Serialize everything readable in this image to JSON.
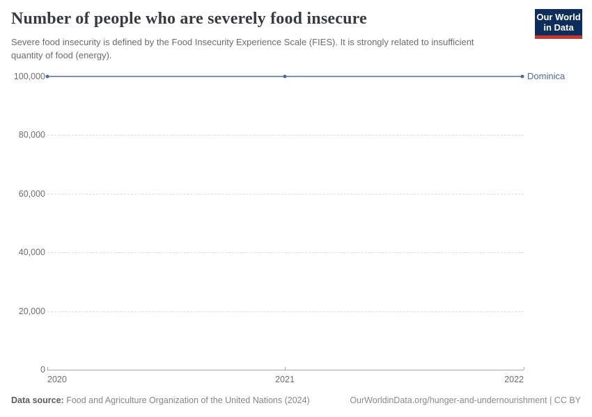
{
  "header": {
    "title": "Number of people who are severely food insecure",
    "subtitle": "Severe food insecurity is defined by the Food Insecurity Experience Scale (FIES). It is strongly related to insufficient quantity of food (energy).",
    "logo": {
      "line1": "Our World",
      "line2": "in Data"
    }
  },
  "chart_data": {
    "type": "line",
    "title": "Number of people who are severely food insecure",
    "xlabel": "",
    "ylabel": "",
    "x": [
      2020,
      2021,
      2022
    ],
    "xticks": [
      2020,
      2021,
      2022
    ],
    "xlim": [
      2020,
      2022
    ],
    "yticks": [
      0,
      20000,
      40000,
      60000,
      80000,
      100000
    ],
    "ylim": [
      0,
      100000
    ],
    "grid": "horizontal-dashed",
    "legend_position": "line-end-label",
    "series": [
      {
        "name": "Dominica",
        "values": [
          100000,
          100000,
          100000
        ],
        "line_color": "#7d93bd",
        "marker_color": "#4c6a9c",
        "label_color": "#4c6a9c"
      }
    ]
  },
  "footer": {
    "source_label": "Data source:",
    "source_text": " Food and Agriculture Organization of the United Nations (2024)",
    "link_text": "OurWorldinData.org/hunger-and-undernourishment",
    "license_text": " | CC BY"
  },
  "colors": {
    "grid": "#dcdcdc",
    "axis": "#a3a3a3",
    "tick_text": "#6e6e6e",
    "logo_bg": "#0d2e5a",
    "logo_accent": "#c5382e"
  }
}
